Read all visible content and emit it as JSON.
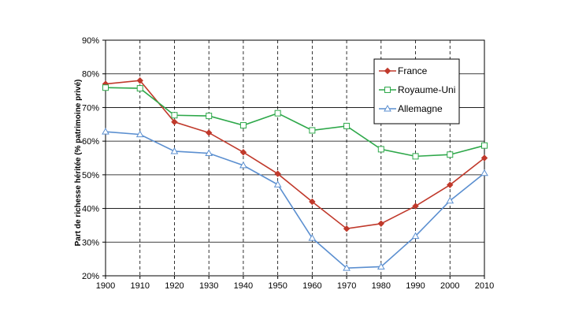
{
  "chart_data": {
    "type": "line",
    "title": "",
    "xlabel": "",
    "ylabel": "Part de richesse héritée (% patrimoine privé)",
    "x": [
      1900,
      1910,
      1920,
      1930,
      1940,
      1950,
      1960,
      1970,
      1980,
      1990,
      2000,
      2010
    ],
    "xlim": [
      1900,
      2010
    ],
    "ylim": [
      20,
      90
    ],
    "yticks": [
      "20%",
      "30%",
      "40%",
      "50%",
      "60%",
      "70%",
      "80%",
      "90%"
    ],
    "xticks": [
      "1900",
      "1910",
      "1920",
      "1930",
      "1940",
      "1950",
      "1960",
      "1970",
      "1980",
      "1990",
      "2000",
      "2010"
    ],
    "grid": true,
    "legend_position": "top-right",
    "series": [
      {
        "name": "France",
        "color": "#c0392b",
        "marker": "diamond-filled",
        "values": [
          77,
          78,
          65.7,
          62.5,
          56.7,
          50.3,
          42,
          34,
          35.5,
          40.7,
          47,
          55
        ]
      },
      {
        "name": "Royaume-Uni",
        "color": "#2ea84a",
        "marker": "square-open",
        "values": [
          75.9,
          75.7,
          67.7,
          67.5,
          64.7,
          68.3,
          63.2,
          64.5,
          57.6,
          55.5,
          56,
          58.7
        ]
      },
      {
        "name": "Allemagne",
        "color": "#5b8fd0",
        "marker": "triangle-open",
        "values": [
          62.8,
          62,
          57,
          56.4,
          52.8,
          47.1,
          31.2,
          22.3,
          22.7,
          31.8,
          42.3,
          50.5
        ]
      }
    ]
  }
}
